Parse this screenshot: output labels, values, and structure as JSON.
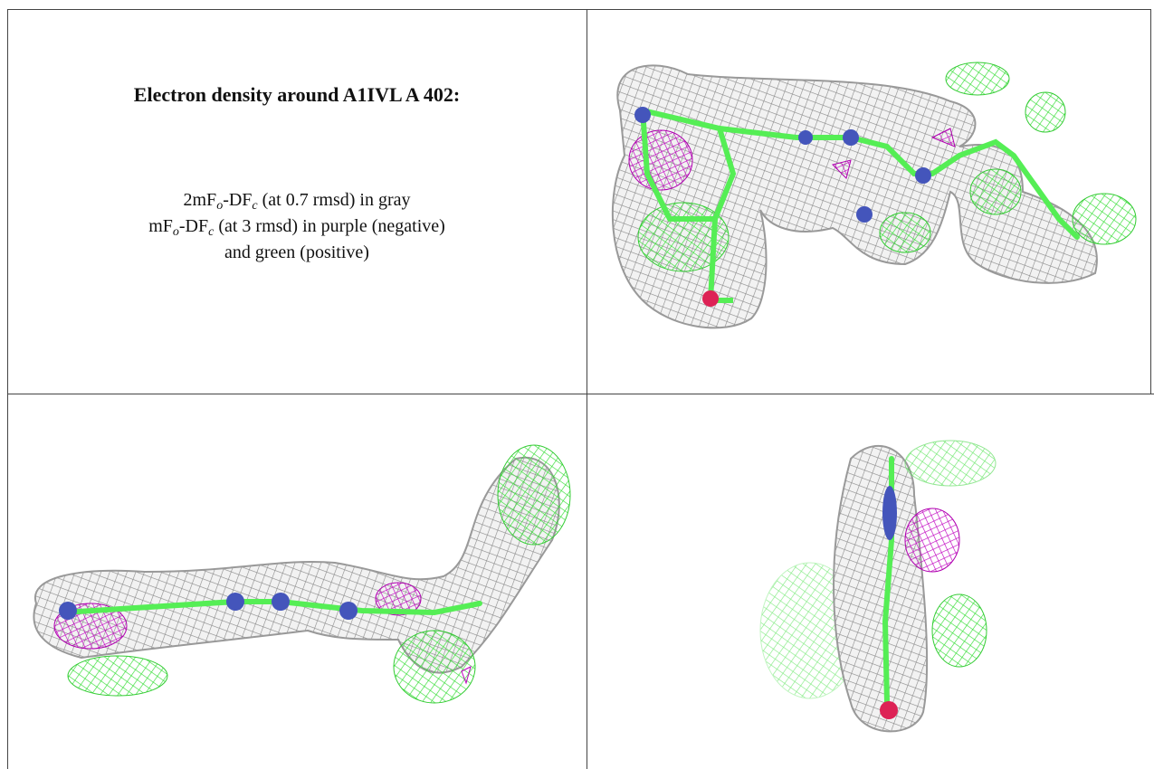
{
  "header": {
    "title": "Electron density around A1IVL A 402:"
  },
  "caption": {
    "lines": [
      {
        "parts": [
          "2mF",
          "o",
          "-DF",
          "c",
          " (at 0.7 rmsd) in gray"
        ]
      },
      {
        "parts": [
          "mF",
          "o",
          "-DF",
          "c",
          " (at 3 rmsd) in purple (negative)"
        ]
      },
      {
        "parts": [
          "and green (positive)"
        ]
      }
    ]
  }
}
